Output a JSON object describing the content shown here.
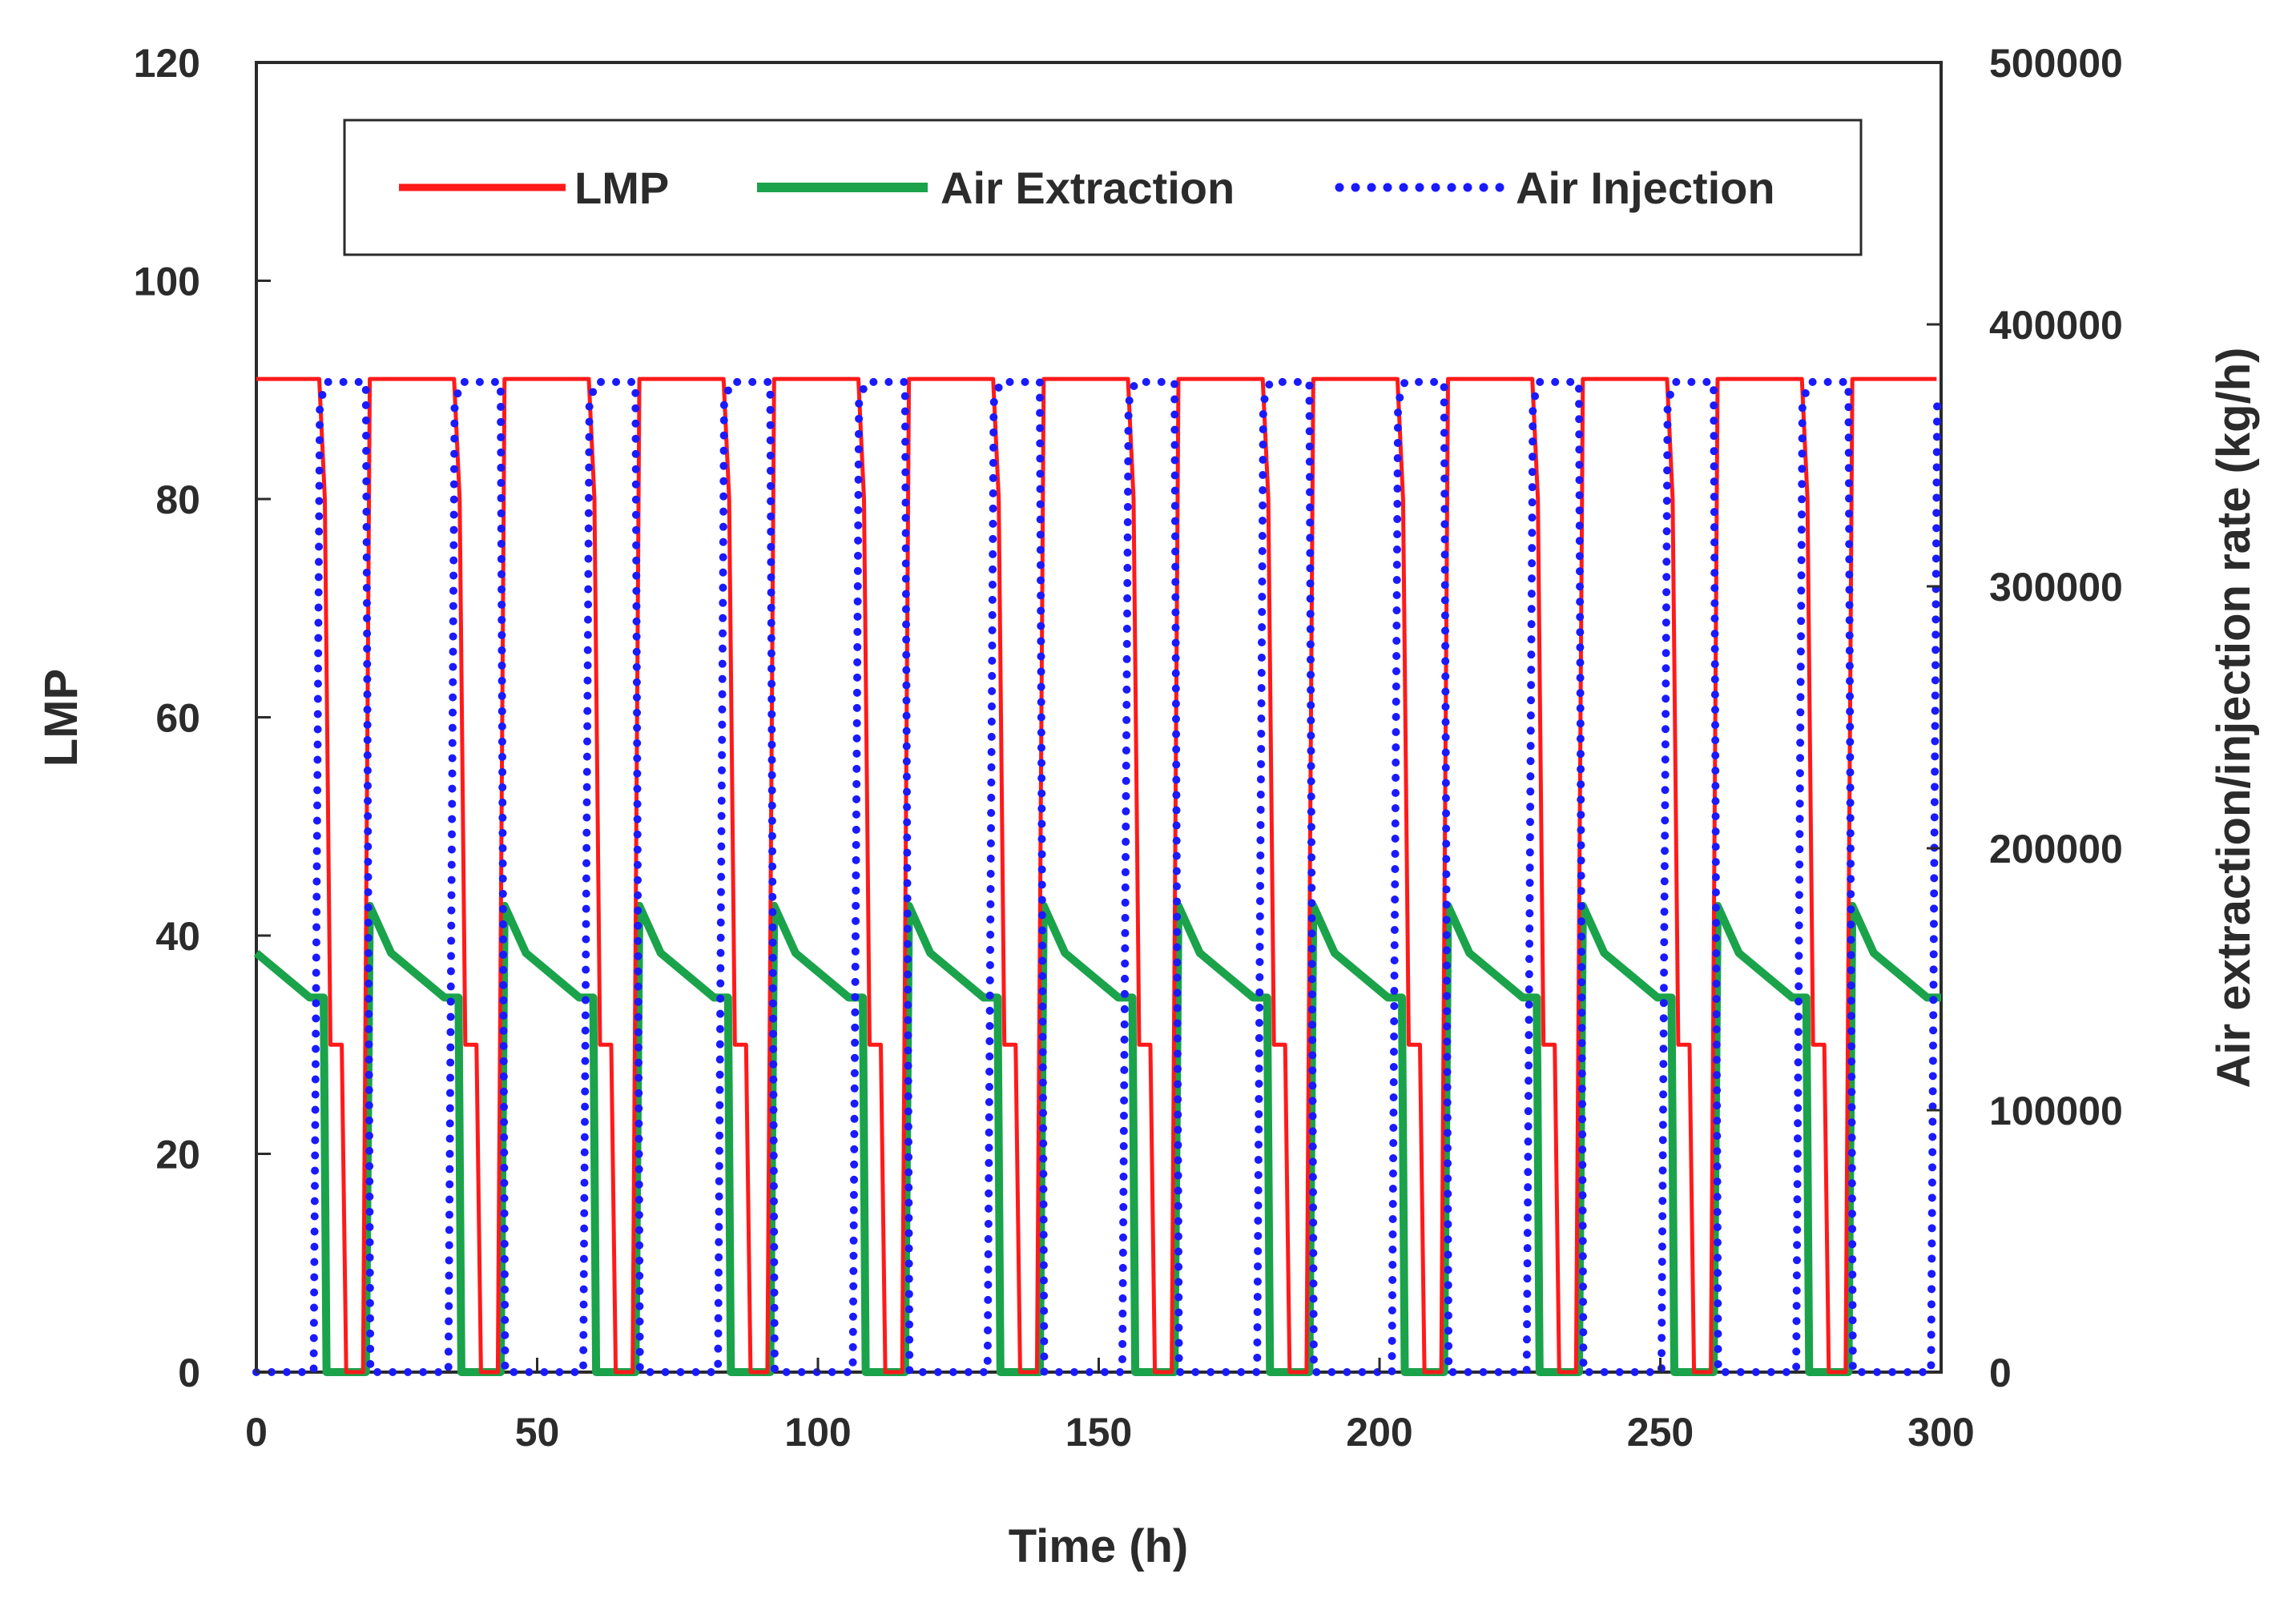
{
  "chart_data": {
    "type": "line",
    "title": "",
    "xlabel": "Time (h)",
    "ylabel": "LMP",
    "y2label": "Air extraction/injection rate (kg/h)",
    "xlim": [
      0,
      300
    ],
    "ylim": [
      0,
      120
    ],
    "y2lim": [
      0,
      500000
    ],
    "x_ticks": [
      0,
      50,
      100,
      150,
      200,
      250,
      300
    ],
    "y_ticks": [
      0,
      20,
      40,
      60,
      80,
      100,
      120
    ],
    "y2_ticks": [
      0,
      100000,
      200000,
      300000,
      400000,
      500000
    ],
    "grid": false,
    "legend_position": "top-center",
    "cycle_period_h": 24,
    "cycle_shape_description": "Repeating daily cycle: LMP 91 most of the day, dropping to ~30 then 0 at night; air injection ~375000 kg/h while LMP is low; air extraction ~175000 decaying to ~140000 kg/h after LMP recovers.",
    "series": [
      {
        "name": "LMP",
        "axis": "left",
        "color": "#ff1a1a",
        "style": "solid",
        "cycle_points": [
          [
            0,
            91
          ],
          [
            11.2,
            91
          ],
          [
            12.2,
            80
          ],
          [
            13.2,
            30
          ],
          [
            15.2,
            30
          ],
          [
            16.0,
            0
          ],
          [
            19.0,
            0
          ],
          [
            20.2,
            91
          ],
          [
            24,
            91
          ]
        ]
      },
      {
        "name": "Air Extraction",
        "axis": "right",
        "color": "#1aa34a",
        "style": "solid",
        "cycle_points": [
          [
            0,
            160000
          ],
          [
            9.5,
            143000
          ],
          [
            12.0,
            143000
          ],
          [
            12.5,
            0
          ],
          [
            19.5,
            0
          ],
          [
            20.2,
            178000
          ],
          [
            24,
            160000
          ]
        ]
      },
      {
        "name": "Air Injection",
        "axis": "right",
        "color": "#1a1aff",
        "style": "dotted",
        "cycle_points": [
          [
            0,
            0
          ],
          [
            10.2,
            0
          ],
          [
            11.3,
            370000
          ],
          [
            12.5,
            378000
          ],
          [
            19.5,
            378000
          ],
          [
            20.3,
            0
          ],
          [
            24,
            0
          ]
        ]
      }
    ]
  }
}
